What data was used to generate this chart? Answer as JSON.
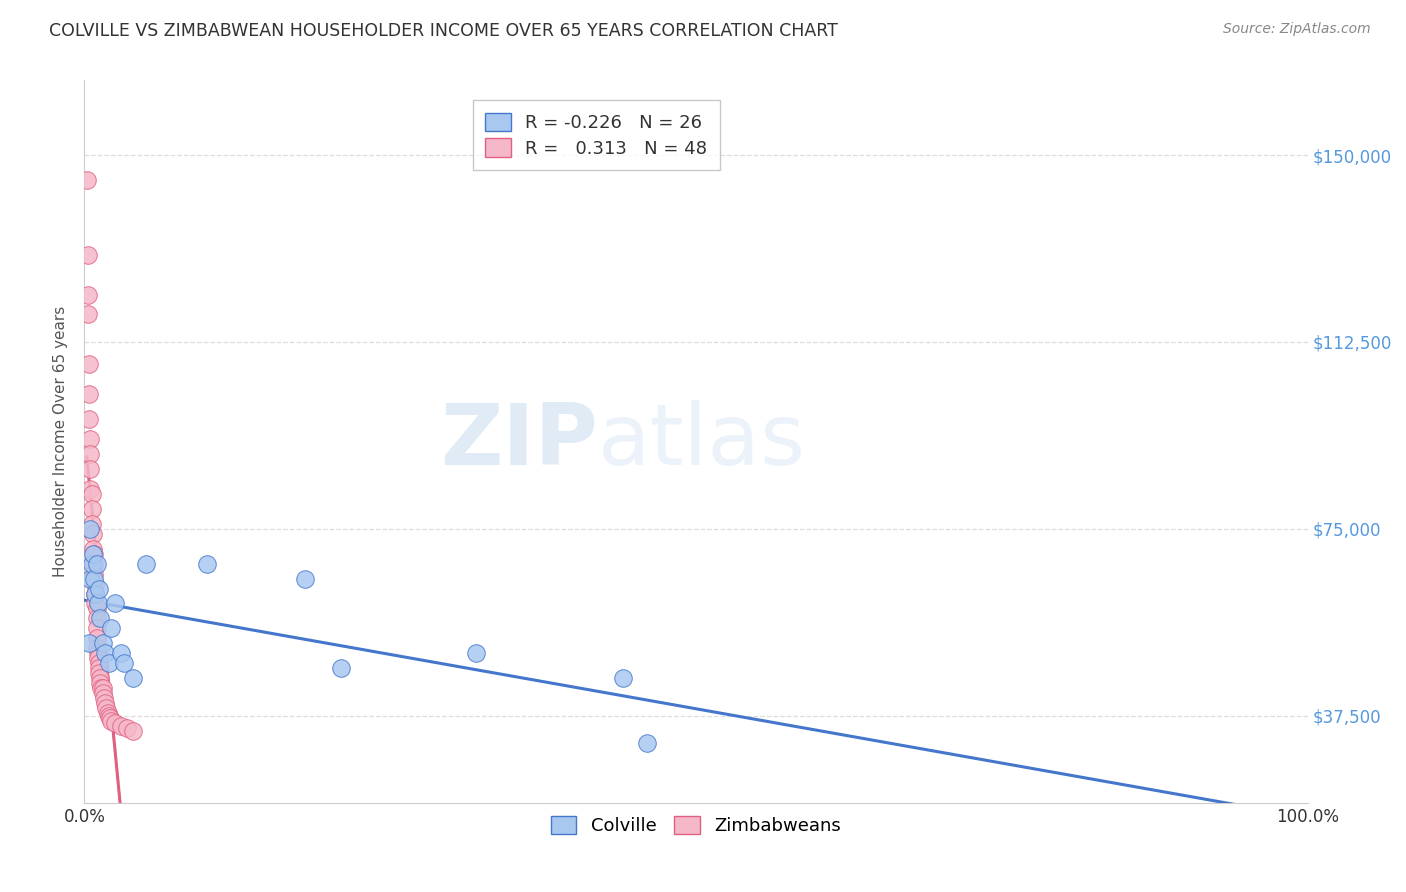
{
  "title": "COLVILLE VS ZIMBABWEAN HOUSEHOLDER INCOME OVER 65 YEARS CORRELATION CHART",
  "source": "Source: ZipAtlas.com",
  "ylabel": "Householder Income Over 65 years",
  "xlim": [
    0,
    1.0
  ],
  "ylim": [
    20000,
    165000
  ],
  "yticks": [
    37500,
    75000,
    112500,
    150000
  ],
  "ytick_labels_right": [
    "$37,500",
    "$75,000",
    "$112,500",
    "$150,000"
  ],
  "watermark_zip": "ZIP",
  "watermark_atlas": "atlas",
  "legend_colville_r": "-0.226",
  "legend_colville_n": "26",
  "legend_zimbabwe_r": "0.313",
  "legend_zimbabwe_n": "48",
  "colville_color": "#A8C8F0",
  "zimbabwe_color": "#F5B8C8",
  "trendline_colville_color": "#4477CC",
  "trendline_zimbabwe_color": "#E06080",
  "background_color": "#FFFFFF",
  "grid_color": "#DDDDDD",
  "title_color": "#333333",
  "axis_label_color": "#555555",
  "right_tick_color": "#5599DD",
  "colville_x": [
    0.004,
    0.005,
    0.005,
    0.006,
    0.007,
    0.008,
    0.009,
    0.01,
    0.011,
    0.012,
    0.013,
    0.015,
    0.017,
    0.02,
    0.022,
    0.025,
    0.03,
    0.032,
    0.04,
    0.05,
    0.1,
    0.18,
    0.21,
    0.32,
    0.44,
    0.46
  ],
  "colville_y": [
    52000,
    65000,
    75000,
    68000,
    70000,
    65000,
    62000,
    68000,
    60000,
    63000,
    57000,
    52000,
    50000,
    48000,
    55000,
    60000,
    50000,
    48000,
    45000,
    68000,
    68000,
    65000,
    47000,
    50000,
    45000,
    32000
  ],
  "zimbabwe_x": [
    0.002,
    0.003,
    0.003,
    0.003,
    0.004,
    0.004,
    0.004,
    0.005,
    0.005,
    0.005,
    0.005,
    0.006,
    0.006,
    0.006,
    0.007,
    0.007,
    0.008,
    0.008,
    0.008,
    0.009,
    0.009,
    0.009,
    0.01,
    0.01,
    0.01,
    0.01,
    0.01,
    0.011,
    0.011,
    0.012,
    0.012,
    0.012,
    0.013,
    0.013,
    0.014,
    0.015,
    0.015,
    0.016,
    0.017,
    0.018,
    0.019,
    0.02,
    0.021,
    0.022,
    0.025,
    0.03,
    0.035,
    0.04
  ],
  "zimbabwe_y": [
    145000,
    130000,
    122000,
    118000,
    108000,
    102000,
    97000,
    93000,
    90000,
    87000,
    83000,
    82000,
    79000,
    76000,
    74000,
    71000,
    70000,
    68000,
    66000,
    64000,
    62000,
    60000,
    59000,
    57000,
    55000,
    53000,
    51000,
    50000,
    49000,
    48000,
    47000,
    46000,
    45000,
    44000,
    43000,
    43000,
    42000,
    41000,
    40000,
    39000,
    38000,
    37500,
    37000,
    36500,
    36000,
    35500,
    35000,
    34500
  ]
}
